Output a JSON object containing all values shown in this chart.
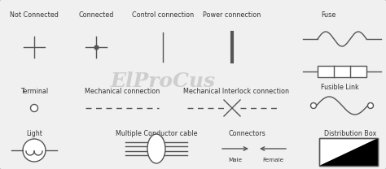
{
  "title": "ElProCus",
  "bg_color": "#f0f0f0",
  "border_color": "#aaaaaa",
  "text_color": "#333333",
  "watermark_color": "#c8c8c8",
  "line_color": "#555555",
  "labels": {
    "not_connected": "Not Connected",
    "connected": "Connected",
    "control_connection": "Control connection",
    "power_connection": "Power connection",
    "fuse": "Fuse",
    "fusible_link": "Fusible Link",
    "terminal": "Terminal",
    "mechanical_connection": "Mechanical connection",
    "mechanical_interlock": "Mechanical Interlock connection",
    "light": "Light",
    "multiple_conductor": "Multiple Conductor cable",
    "connectors": "Connectors",
    "male": "Male",
    "female": "Female",
    "distribution_box": "Distribution Box"
  },
  "fs_label": 5.8,
  "fs_small": 5.2,
  "lw": 1.0
}
